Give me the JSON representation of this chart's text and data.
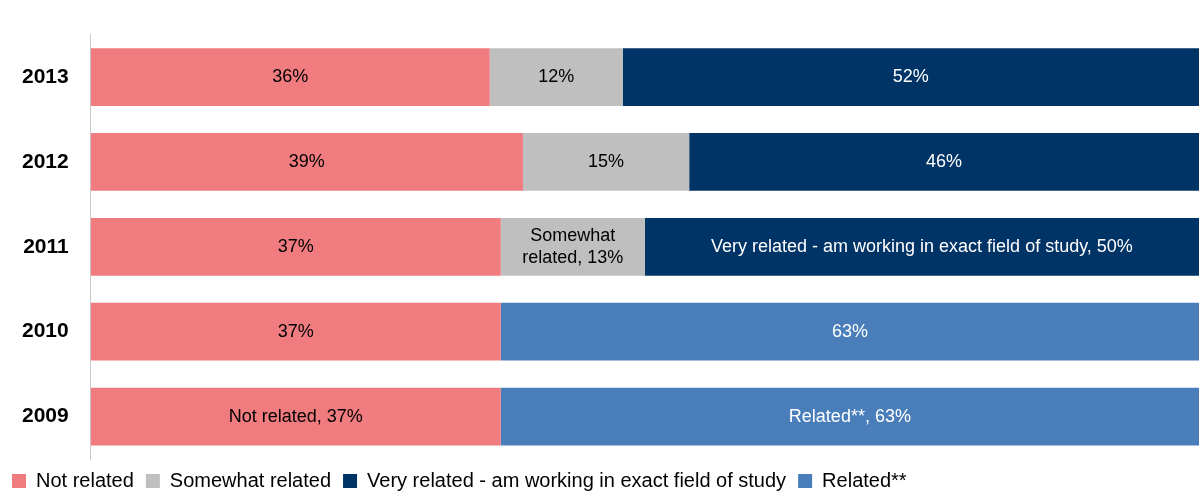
{
  "chart_data": {
    "type": "bar",
    "orientation": "horizontal",
    "stacked": true,
    "categories": [
      "2013",
      "2012",
      "2011",
      "2010",
      "2009"
    ],
    "xlim": [
      0,
      100
    ],
    "tick_labels": "y",
    "legend": "bottom left",
    "series": [
      {
        "name": "Not related",
        "color": "#f07c80",
        "values": [
          36,
          39,
          37,
          37,
          37
        ],
        "value_labels": [
          "36%",
          "39%",
          "37%",
          "37%",
          "Not related, 37%"
        ]
      },
      {
        "name": "Somewhat related",
        "color": "#bfbfbf",
        "values": [
          12,
          15,
          13,
          null,
          null
        ],
        "value_labels": [
          "12%",
          "15%",
          "Somewhat related, 13%",
          null,
          null
        ]
      },
      {
        "name": "Very related - am working in exact field of study",
        "color": "#003366",
        "values": [
          52,
          46,
          50,
          null,
          null
        ],
        "value_labels": [
          "52%",
          "46%",
          "Very related - am working in exact field of study, 50%",
          null,
          null
        ]
      },
      {
        "name": "Related**",
        "color": "#4a7ebb",
        "values": [
          null,
          null,
          null,
          63,
          63
        ],
        "value_labels": [
          null,
          null,
          null,
          "63%",
          "Related**, 63%"
        ]
      }
    ]
  }
}
